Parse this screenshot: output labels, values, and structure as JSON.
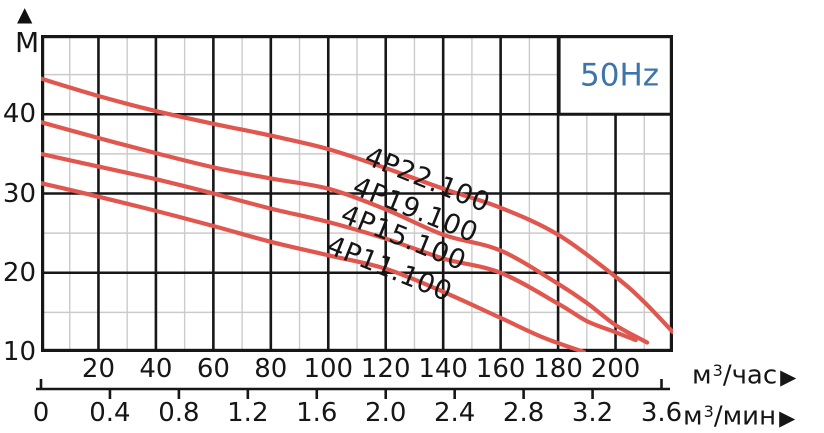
{
  "frequency_label": "50Hz",
  "y_axis": {
    "arrow": "▲",
    "unit": "M",
    "ticks": [
      40,
      30,
      20,
      10
    ]
  },
  "x_axis_hour": {
    "ticks": [
      20,
      40,
      60,
      80,
      100,
      120,
      140,
      160,
      180,
      200
    ],
    "unit_base": "м",
    "unit_sup": "3",
    "unit_rest": "/час",
    "arrow": "▶"
  },
  "x_axis_min": {
    "ticks": [
      "0",
      "0.4",
      "0.8",
      "1.2",
      "1.6",
      "2.0",
      "2.4",
      "2.8",
      "3.2",
      "3.6"
    ],
    "tick_values": [
      0,
      0.4,
      0.8,
      1.2,
      1.6,
      2.0,
      2.4,
      2.8,
      3.2,
      3.6
    ],
    "unit_base": "м",
    "unit_sup": "3",
    "unit_rest": "/мин",
    "arrow": "▶"
  },
  "colors": {
    "curve": "#E0574F",
    "grid_major": "#171717",
    "grid_minor": "#cbcbcb",
    "frequency_text": "#3E74A8",
    "text": "#161616",
    "background": "#ffffff"
  },
  "chart_data": {
    "type": "line",
    "annotation": "50Hz",
    "xlabel_primary": "м3/час",
    "xlabel_secondary": "м3/мин",
    "ylabel": "M",
    "xlim": [
      0,
      220
    ],
    "ylim": [
      10,
      50
    ],
    "x_major_step": 20,
    "x_minor_step": 10,
    "y_major_step": 10,
    "y_minor_step": 5,
    "secondary_axis_ticks": [
      0,
      0.4,
      0.8,
      1.2,
      1.6,
      2.0,
      2.4,
      2.8,
      3.2,
      3.6
    ],
    "grid": "major-and-minor",
    "legend_position": "inline-labels",
    "series": [
      {
        "name": "4P22.100",
        "points": [
          [
            0,
            44.5
          ],
          [
            20,
            42.3
          ],
          [
            40,
            40.4
          ],
          [
            60,
            38.8
          ],
          [
            80,
            37.3
          ],
          [
            100,
            35.6
          ],
          [
            120,
            33.2
          ],
          [
            140,
            30.6
          ],
          [
            160,
            28.2
          ],
          [
            180,
            24.8
          ],
          [
            200,
            19.5
          ],
          [
            210,
            16.3
          ],
          [
            220,
            12.5
          ]
        ]
      },
      {
        "name": "4P19.100",
        "points": [
          [
            0,
            39.0
          ],
          [
            20,
            37.0
          ],
          [
            40,
            35.1
          ],
          [
            60,
            33.3
          ],
          [
            80,
            31.9
          ],
          [
            100,
            30.6
          ],
          [
            120,
            28.0
          ],
          [
            140,
            24.8
          ],
          [
            160,
            22.8
          ],
          [
            180,
            18.6
          ],
          [
            190,
            16.2
          ],
          [
            200,
            13.4
          ],
          [
            211,
            11.2
          ]
        ]
      },
      {
        "name": "4P15.100",
        "points": [
          [
            0,
            35.0
          ],
          [
            20,
            33.4
          ],
          [
            40,
            31.8
          ],
          [
            60,
            30.0
          ],
          [
            80,
            28.1
          ],
          [
            100,
            26.4
          ],
          [
            120,
            24.3
          ],
          [
            140,
            21.8
          ],
          [
            160,
            20.0
          ],
          [
            180,
            16.1
          ],
          [
            190,
            13.9
          ],
          [
            200,
            12.5
          ],
          [
            207,
            11.5
          ]
        ]
      },
      {
        "name": "4P11.100",
        "points": [
          [
            0,
            31.3
          ],
          [
            20,
            29.6
          ],
          [
            40,
            27.8
          ],
          [
            60,
            25.9
          ],
          [
            80,
            23.9
          ],
          [
            100,
            22.2
          ],
          [
            120,
            20.5
          ],
          [
            140,
            17.6
          ],
          [
            160,
            14.3
          ],
          [
            175,
            11.8
          ],
          [
            189,
            10.0
          ]
        ]
      }
    ]
  }
}
